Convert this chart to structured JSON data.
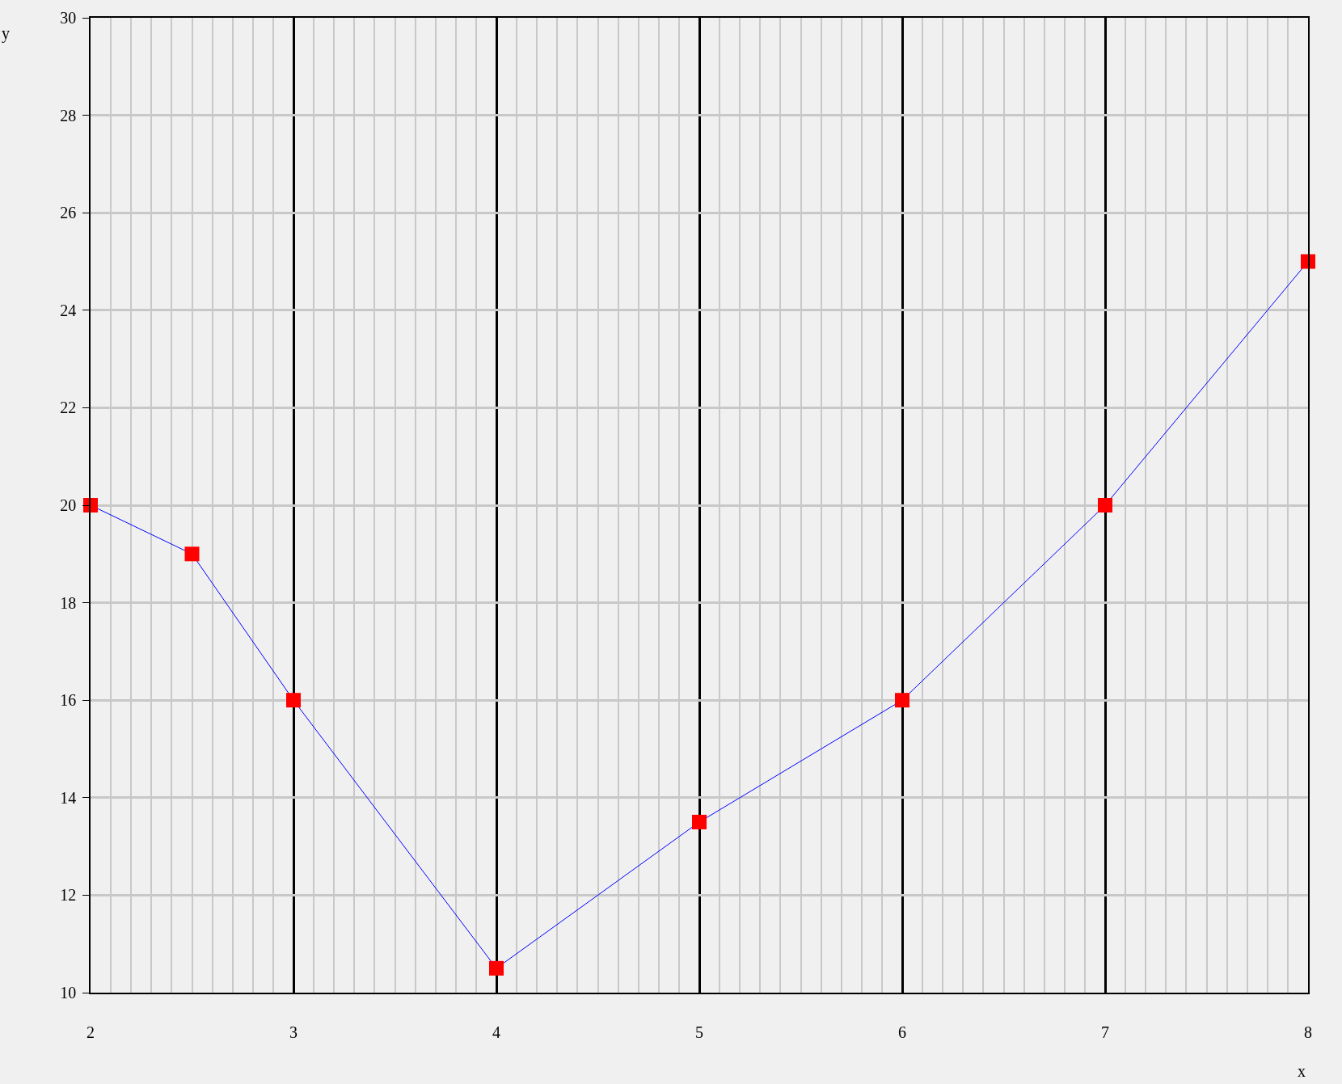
{
  "chart_data": {
    "type": "line",
    "xlabel": "x",
    "ylabel": "y",
    "x": [
      2,
      2.5,
      3,
      4,
      5,
      6,
      7,
      8
    ],
    "series": [
      {
        "color": "#0000ff",
        "colors": [
          "#ff0000",
          "#ff0000",
          "#ff0000",
          "#ff0000",
          "#ff0000",
          "#ff0000",
          "#ff0000",
          "#ff0000"
        ],
        "values": [
          20,
          19,
          16,
          10.5,
          13.5,
          16,
          20,
          25
        ]
      }
    ],
    "xlim": [
      2,
      8
    ],
    "xticks": [
      2,
      3,
      4,
      5,
      6,
      7,
      8
    ],
    "ylim": [
      10,
      30
    ],
    "yticks": [
      10,
      12,
      14,
      16,
      18,
      20,
      22,
      24,
      26,
      28,
      30
    ],
    "grid": true,
    "marker": "square",
    "line_style": "solid"
  }
}
